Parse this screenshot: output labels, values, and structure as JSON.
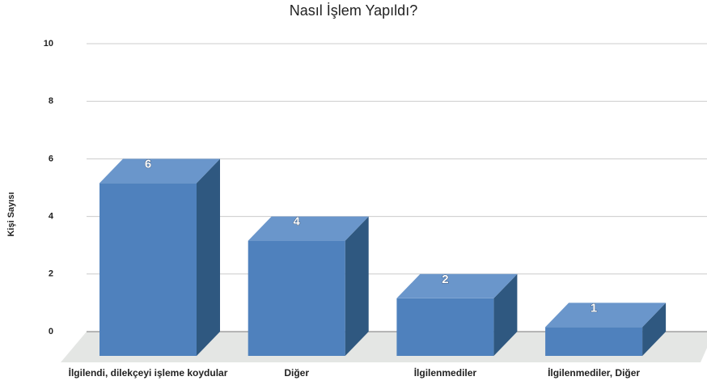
{
  "chart_data": {
    "type": "bar3d",
    "title": "Nasıl İşlem Yapıldı?",
    "y_label": "Kişi Sayısı",
    "categories": [
      "İlgilendi, dilekçeyi işleme koydular",
      "Diğer",
      "İlgilenmediler",
      "İlgilenmediler, Diğer"
    ],
    "values": [
      6,
      4,
      2,
      1
    ],
    "color": "#4f81bd",
    "ylim": [
      0,
      10
    ],
    "yticks": [
      0,
      2,
      4,
      6,
      8,
      10
    ],
    "grid": true
  }
}
